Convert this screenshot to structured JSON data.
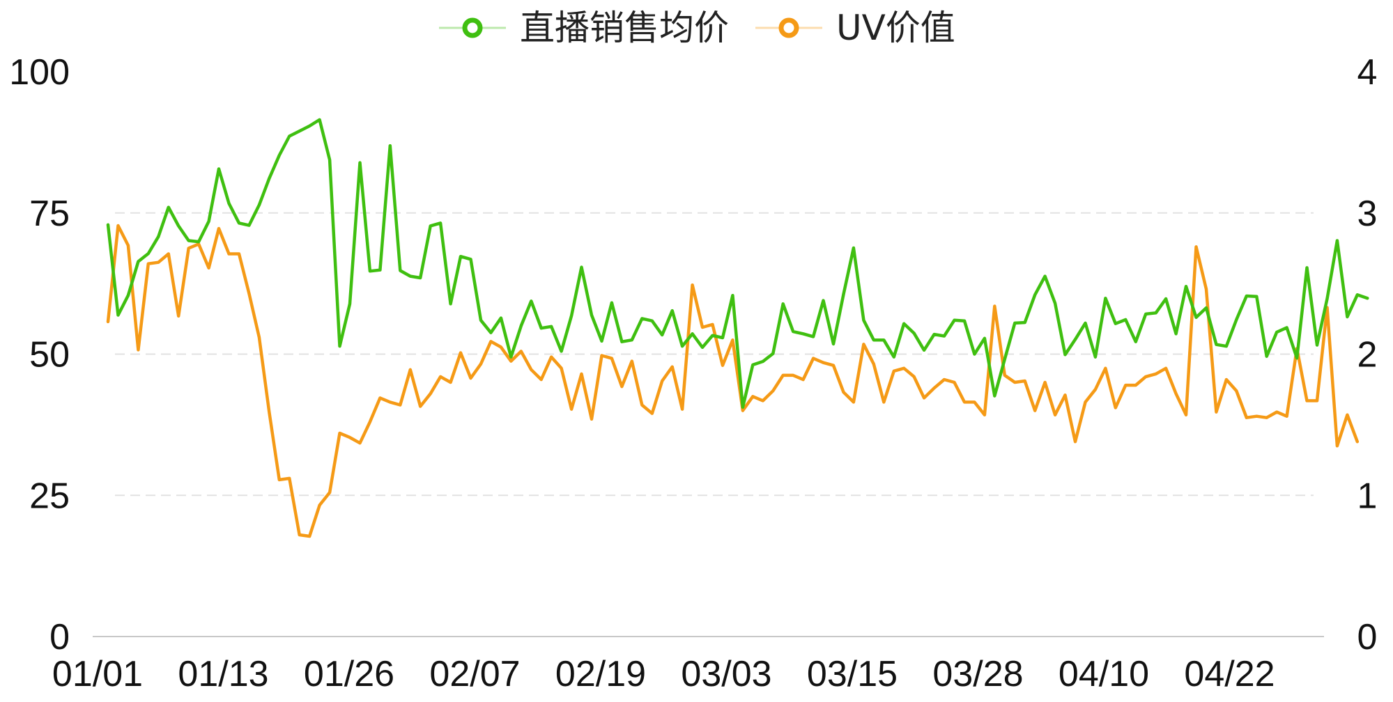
{
  "chart_data": {
    "type": "line",
    "legend": {
      "position": "top-center",
      "items": [
        {
          "label": "直播销售均价",
          "color": "#3fbf10"
        },
        {
          "label": "UV价值",
          "color": "#f59a16"
        }
      ]
    },
    "x": {
      "tick_labels": [
        "01/01",
        "01/13",
        "01/26",
        "02/07",
        "02/19",
        "03/03",
        "03/15",
        "03/28",
        "04/10",
        "04/22"
      ],
      "point_count": 121
    },
    "y_left": {
      "range": [
        0,
        100
      ],
      "ticks": [
        "100",
        "75",
        "50",
        "25",
        "0"
      ]
    },
    "y_right": {
      "range": [
        0,
        4
      ],
      "ticks": [
        "4",
        "3",
        "2",
        "1",
        "0"
      ]
    },
    "grid": {
      "horizontal": true,
      "style": "dashed",
      "color": "#e2e2e2"
    },
    "series": [
      {
        "name": "直播销售均价",
        "axis": "left",
        "color": "#3fbf10",
        "values": [
          72.9,
          56.9,
          60.4,
          66.4,
          67.8,
          70.8,
          76,
          72.7,
          70.1,
          69.9,
          73.5,
          82.8,
          76.7,
          73.2,
          72.8,
          76.4,
          81.1,
          85.2,
          88.6,
          89.5,
          90.4,
          91.5,
          84.4,
          51.4,
          58.9,
          83.9,
          64.7,
          64.9,
          86.9,
          64.8,
          63.8,
          63.5,
          72.7,
          73.2,
          58.9,
          67.3,
          66.8,
          56,
          53.8,
          56.4,
          49.5,
          55,
          59.4,
          54.6,
          54.9,
          50.5,
          56.8,
          65.4,
          56.9,
          52.3,
          59.1,
          52.2,
          52.5,
          56.3,
          55.9,
          53.4,
          57.7,
          51.4,
          53.6,
          51.2,
          53.3,
          52.9,
          60.4,
          40.6,
          48.1,
          48.7,
          50.1,
          58.9,
          54,
          53.6,
          53.1,
          59.5,
          51.8,
          60.6,
          68.8,
          56,
          52.5,
          52.5,
          49.5,
          55.4,
          53.7,
          50.7,
          53.5,
          53.2,
          56,
          55.9,
          50,
          52.8,
          42.6,
          49.1,
          55.5,
          55.6,
          60.5,
          63.8,
          59,
          49.9,
          52.6,
          55.5,
          49.5,
          59.9,
          55.4,
          56.1,
          52.2,
          57.1,
          57.3,
          59.8,
          53.6,
          62,
          56.5,
          58.2,
          51.7,
          51.4,
          56.1,
          60.3,
          60.2,
          49.6,
          53.9,
          54.7,
          49.3,
          65.3,
          51.6,
          59.8,
          70.1,
          56.6,
          60.5,
          59.9
        ]
      },
      {
        "name": "UV价值",
        "axis": "right",
        "color": "#f59a16",
        "values": [
          2.23,
          2.91,
          2.77,
          2.03,
          2.64,
          2.65,
          2.71,
          2.27,
          2.75,
          2.78,
          2.61,
          2.89,
          2.71,
          2.71,
          2.43,
          2.12,
          1.59,
          1.11,
          1.12,
          0.72,
          0.71,
          0.93,
          1.02,
          1.44,
          1.41,
          1.37,
          1.52,
          1.69,
          1.66,
          1.64,
          1.89,
          1.63,
          1.72,
          1.84,
          1.8,
          2.01,
          1.83,
          1.93,
          2.09,
          2.05,
          1.95,
          2.02,
          1.89,
          1.82,
          1.98,
          1.9,
          1.61,
          1.86,
          1.54,
          1.99,
          1.97,
          1.77,
          1.95,
          1.64,
          1.58,
          1.81,
          1.91,
          1.61,
          2.49,
          2.19,
          2.21,
          1.92,
          2.1,
          1.6,
          1.7,
          1.67,
          1.74,
          1.85,
          1.85,
          1.82,
          1.97,
          1.94,
          1.92,
          1.73,
          1.66,
          2.07,
          1.93,
          1.66,
          1.88,
          1.9,
          1.84,
          1.69,
          1.76,
          1.82,
          1.8,
          1.66,
          1.66,
          1.57,
          2.34,
          1.85,
          1.8,
          1.81,
          1.6,
          1.8,
          1.57,
          1.71,
          1.38,
          1.66,
          1.75,
          1.9,
          1.62,
          1.78,
          1.78,
          1.84,
          1.86,
          1.9,
          1.72,
          1.57,
          2.76,
          2.46,
          1.59,
          1.82,
          1.74,
          1.55,
          1.56,
          1.55,
          1.59,
          1.56,
          2.04,
          1.67,
          1.67,
          2.33,
          1.35,
          1.57,
          1.38
        ]
      }
    ]
  }
}
